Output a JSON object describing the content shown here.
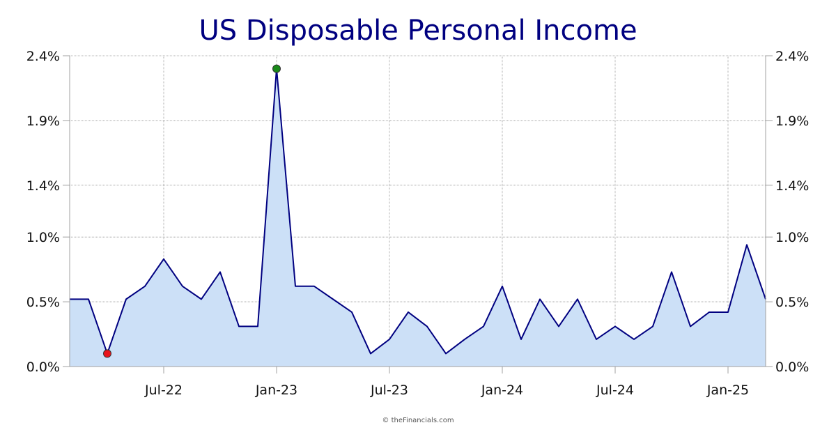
{
  "chart_data": {
    "type": "area",
    "title": "US Disposable Personal Income",
    "credit": "© theFinancials.com",
    "xlabel": "",
    "ylabel": "",
    "x": [
      "2022-02",
      "2022-03",
      "2022-04",
      "2022-05",
      "2022-06",
      "2022-07",
      "2022-08",
      "2022-09",
      "2022-10",
      "2022-11",
      "2022-12",
      "2023-01",
      "2023-02",
      "2023-03",
      "2023-04",
      "2023-05",
      "2023-06",
      "2023-07",
      "2023-08",
      "2023-09",
      "2023-10",
      "2023-11",
      "2023-12",
      "2024-01",
      "2024-02",
      "2024-03",
      "2024-04",
      "2024-05",
      "2024-06",
      "2024-07",
      "2024-08",
      "2024-09",
      "2024-10",
      "2024-11",
      "2024-12",
      "2025-01",
      "2025-02",
      "2025-03"
    ],
    "values": [
      0.52,
      0.52,
      0.1,
      0.52,
      0.62,
      0.83,
      0.62,
      0.52,
      0.73,
      0.31,
      0.31,
      2.3,
      0.62,
      0.62,
      0.52,
      0.42,
      0.1,
      0.21,
      0.42,
      0.31,
      0.1,
      0.21,
      0.31,
      0.62,
      0.21,
      0.52,
      0.31,
      0.52,
      0.21,
      0.31,
      0.21,
      0.31,
      0.73,
      0.31,
      0.42,
      0.42,
      0.94,
      0.52
    ],
    "x_ticks": [
      {
        "x": "2022-07",
        "label": "Jul-22"
      },
      {
        "x": "2023-01",
        "label": "Jan-23"
      },
      {
        "x": "2023-07",
        "label": "Jul-23"
      },
      {
        "x": "2024-01",
        "label": "Jan-24"
      },
      {
        "x": "2024-07",
        "label": "Jul-24"
      },
      {
        "x": "2025-01",
        "label": "Jan-25"
      }
    ],
    "y_ticks": [
      0.0,
      0.5,
      1.0,
      1.4,
      1.9,
      2.4
    ],
    "y_tick_labels": [
      "0.0%",
      "0.5%",
      "1.0%",
      "1.4%",
      "1.9%",
      "2.4%"
    ],
    "ylim": [
      0.0,
      2.4
    ],
    "grid": true,
    "highlight_min": {
      "x": "2022-04",
      "value": 0.1,
      "color": "#e8141b"
    },
    "highlight_max": {
      "x": "2023-01",
      "value": 2.3,
      "color": "#1a8a1a"
    },
    "colors": {
      "line": "#000080",
      "fill": "#cce0f7",
      "grid": "#999999",
      "axis": "#a0a0a0",
      "title": "#000080"
    }
  }
}
